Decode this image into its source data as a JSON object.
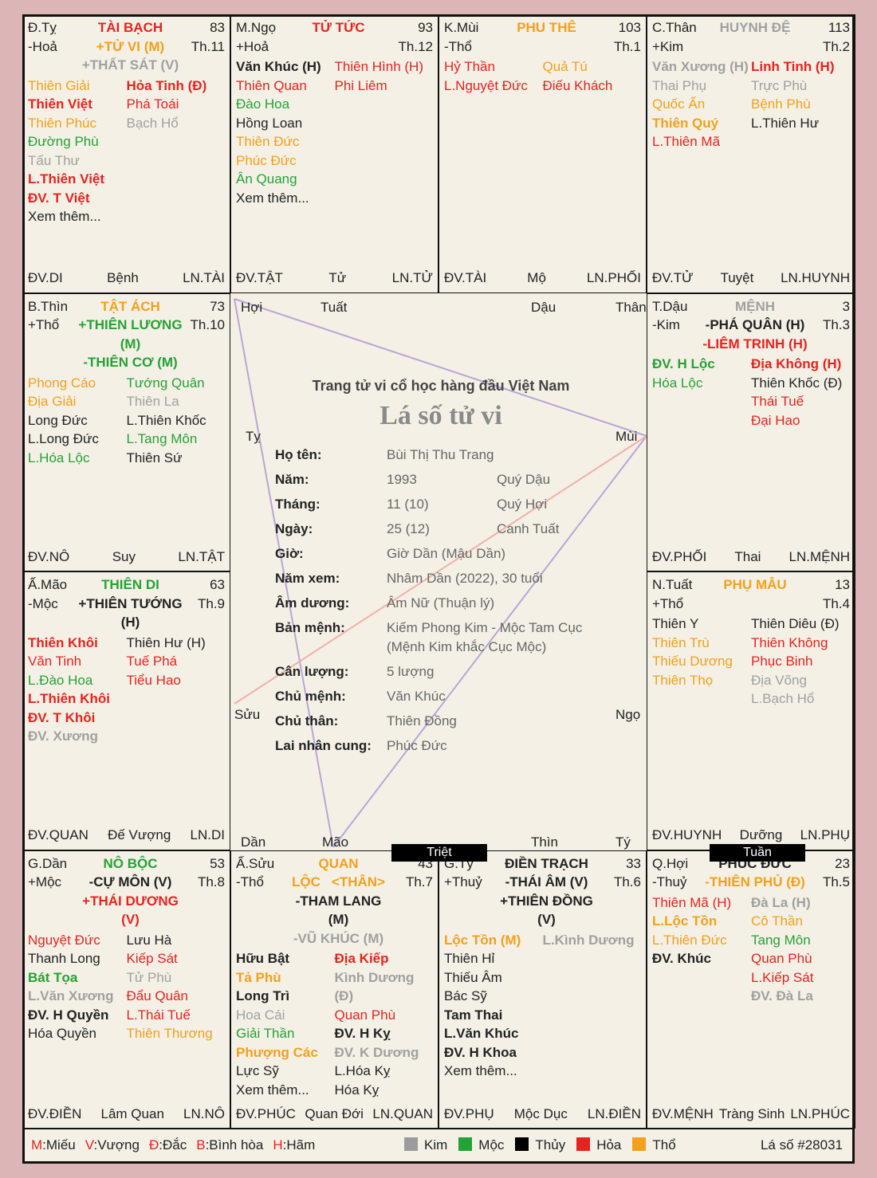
{
  "palaces": [
    {
      "branch": "Đ.Tỵ",
      "element": "-Hoả",
      "name": "TÀI BẠCH",
      "name_color": "#e8231f",
      "age": 83,
      "month": "Th.11",
      "main": [
        {
          "t": "+TỬ VI (M)",
          "c": "#f5a01a",
          "b": true
        },
        {
          "t": "+THẤT SÁT (V)",
          "c": "#a0a0a0",
          "b": true
        }
      ],
      "left": [
        {
          "t": "Thiên Giải",
          "c": "#f5a01a"
        },
        {
          "t": "Thiên Việt",
          "c": "#e8231f",
          "b": true
        },
        {
          "t": "Thiên Phúc",
          "c": "#f5a01a"
        },
        {
          "t": "Đường Phù",
          "c": "#23a334"
        },
        {
          "t": "Tấu Thư",
          "c": "#a0a0a0"
        },
        {
          "t": "L.Thiên Việt",
          "c": "#e8231f",
          "b": true
        },
        {
          "t": "ĐV. T Việt",
          "c": "#e8231f",
          "b": true
        },
        {
          "t": "Xem thêm...",
          "c": "#222222"
        }
      ],
      "right": [
        {
          "t": "Hỏa Tinh (Đ)",
          "c": "#e8231f",
          "b": true
        },
        {
          "t": "Phá Toái",
          "c": "#e8231f"
        },
        {
          "t": "Bạch Hổ",
          "c": "#a0a0a0"
        }
      ],
      "footer": [
        "ĐV.DI",
        "Bệnh",
        "LN.TÀI"
      ]
    },
    {
      "branch": "M.Ngọ",
      "element": "+Hoả",
      "name": "TỬ TỨC",
      "name_color": "#e8231f",
      "age": 93,
      "month": "Th.12",
      "main": [],
      "left": [
        {
          "t": "Văn Khúc (H)",
          "c": "#222222",
          "b": true
        },
        {
          "t": "Thiên Quan",
          "c": "#e8231f"
        },
        {
          "t": "Đào Hoa",
          "c": "#23a334"
        },
        {
          "t": "Hồng Loan",
          "c": "#222222"
        },
        {
          "t": "Thiên Đức",
          "c": "#f5a01a"
        },
        {
          "t": "Phúc Đức",
          "c": "#f5a01a"
        },
        {
          "t": "Ân Quang",
          "c": "#23a334"
        },
        {
          "t": "Xem thêm...",
          "c": "#222222"
        }
      ],
      "right": [
        {
          "t": "Thiên Hình (H)",
          "c": "#e8231f"
        },
        {
          "t": "Phi Liêm",
          "c": "#e8231f"
        }
      ],
      "footer": [
        "ĐV.TẬT",
        "Tử",
        "LN.TỬ"
      ]
    },
    {
      "branch": "K.Mùi",
      "element": "-Thổ",
      "name": "PHU THÊ",
      "name_color": "#f5a01a",
      "age": 103,
      "month": "Th.1",
      "main": [],
      "left": [
        {
          "t": "Hỷ Thần",
          "c": "#e8231f"
        },
        {
          "t": "L.Nguyệt Đức",
          "c": "#e8231f"
        }
      ],
      "right": [
        {
          "t": "Quả Tú",
          "c": "#f5a01a"
        },
        {
          "t": "Điếu Khách",
          "c": "#e8231f"
        }
      ],
      "footer": [
        "ĐV.TÀI",
        "Mộ",
        "LN.PHỐI"
      ]
    },
    {
      "branch": "C.Thân",
      "element": "+Kim",
      "name": "HUYNH ĐỆ",
      "name_color": "#a0a0a0",
      "age": 113,
      "month": "Th.2",
      "main": [],
      "left": [
        {
          "t": "Văn Xương (H)",
          "c": "#a0a0a0",
          "b": true
        },
        {
          "t": "Thai Phụ",
          "c": "#a0a0a0"
        },
        {
          "t": "Quốc Ấn",
          "c": "#f5a01a"
        },
        {
          "t": "Thiên Quý",
          "c": "#f5a01a",
          "b": true
        },
        {
          "t": "L.Thiên Mã",
          "c": "#e8231f"
        }
      ],
      "right": [
        {
          "t": "Linh Tinh (H)",
          "c": "#e8231f",
          "b": true
        },
        {
          "t": "Trực Phù",
          "c": "#a0a0a0"
        },
        {
          "t": "Bệnh Phù",
          "c": "#f5a01a"
        },
        {
          "t": "L.Thiên Hư",
          "c": "#222222"
        }
      ],
      "footer": [
        "ĐV.TỬ",
        "Tuyệt",
        "LN.HUYNH"
      ]
    },
    {
      "branch": "B.Thìn",
      "element": "+Thổ",
      "name": "TẬT ÁCH",
      "name_color": "#f5a01a",
      "age": 73,
      "month": "Th.10",
      "main": [
        {
          "t": "+THIÊN LƯƠNG (M)",
          "c": "#23a334",
          "b": true
        },
        {
          "t": "-THIÊN CƠ (M)",
          "c": "#23a334",
          "b": true
        }
      ],
      "left": [
        {
          "t": "Phong Cáo",
          "c": "#f5a01a"
        },
        {
          "t": "Địa Giải",
          "c": "#f5a01a"
        },
        {
          "t": "Long Đức",
          "c": "#222222"
        },
        {
          "t": "L.Long Đức",
          "c": "#222222"
        },
        {
          "t": "L.Hóa Lộc",
          "c": "#23a334"
        }
      ],
      "right": [
        {
          "t": "Tướng Quân",
          "c": "#23a334"
        },
        {
          "t": "Thiên La",
          "c": "#a0a0a0"
        },
        {
          "t": "L.Thiên Khốc",
          "c": "#222222"
        },
        {
          "t": "L.Tang Môn",
          "c": "#23a334"
        },
        {
          "t": "Thiên Sứ",
          "c": "#222222"
        }
      ],
      "footer": [
        "ĐV.NÔ",
        "Suy",
        "LN.TẬT"
      ]
    },
    {
      "branch": "T.Dậu",
      "element": "-Kim",
      "name": "MỆNH",
      "name_color": "#a0a0a0",
      "age": 3,
      "month": "Th.3",
      "main": [
        {
          "t": "-PHÁ QUÂN (H)",
          "c": "#222222",
          "b": true
        },
        {
          "t": "-LIÊM TRINH (H)",
          "c": "#e8231f",
          "b": true
        }
      ],
      "left": [
        {
          "t": "ĐV. H Lộc",
          "c": "#23a334",
          "b": true
        },
        {
          "t": "Hóa Lộc",
          "c": "#23a334"
        }
      ],
      "right": [
        {
          "t": "Địa Không (H)",
          "c": "#e8231f",
          "b": true
        },
        {
          "t": "Thiên Khốc (Đ)",
          "c": "#222222"
        },
        {
          "t": "Thái Tuế",
          "c": "#e8231f"
        },
        {
          "t": "Đại Hao",
          "c": "#e8231f"
        }
      ],
      "footer": [
        "ĐV.PHỐI",
        "Thai",
        "LN.MỆNH"
      ]
    },
    {
      "branch": "Ấ.Mão",
      "element": "-Mộc",
      "name": "THIÊN DI",
      "name_color": "#23a334",
      "age": 63,
      "month": "Th.9",
      "main": [
        {
          "t": "+THIÊN TƯỚNG (H)",
          "c": "#222222",
          "b": true
        }
      ],
      "left": [
        {
          "t": "Thiên Khôi",
          "c": "#e8231f",
          "b": true
        },
        {
          "t": "Văn Tinh",
          "c": "#e8231f"
        },
        {
          "t": "L.Đào Hoa",
          "c": "#23a334"
        },
        {
          "t": "L.Thiên Khôi",
          "c": "#e8231f",
          "b": true
        },
        {
          "t": "ĐV. T Khôi",
          "c": "#e8231f",
          "b": true
        },
        {
          "t": "ĐV. Xương",
          "c": "#a0a0a0",
          "b": true
        }
      ],
      "right": [
        {
          "t": "Thiên Hư (H)",
          "c": "#222222"
        },
        {
          "t": "Tuế Phá",
          "c": "#e8231f"
        },
        {
          "t": "Tiểu Hao",
          "c": "#e8231f"
        }
      ],
      "footer": [
        "ĐV.QUAN",
        "Đế Vượng",
        "LN.DI"
      ]
    },
    {
      "branch": "N.Tuất",
      "element": "+Thổ",
      "name": "PHỤ MẪU",
      "name_color": "#f5a01a",
      "age": 13,
      "month": "Th.4",
      "main": [],
      "left": [
        {
          "t": "Thiên Y",
          "c": "#222222"
        },
        {
          "t": "Thiên Trù",
          "c": "#f5a01a"
        },
        {
          "t": "Thiếu Dương",
          "c": "#f5a01a"
        },
        {
          "t": "Thiên Thọ",
          "c": "#f5a01a"
        }
      ],
      "right": [
        {
          "t": "Thiên Diêu (Đ)",
          "c": "#222222"
        },
        {
          "t": "Thiên Không",
          "c": "#e8231f"
        },
        {
          "t": "Phục Binh",
          "c": "#e8231f"
        },
        {
          "t": "Địa Võng",
          "c": "#a0a0a0"
        },
        {
          "t": "L.Bạch Hổ",
          "c": "#a0a0a0"
        }
      ],
      "footer": [
        "ĐV.HUYNH",
        "Dưỡng",
        "LN.PHỤ"
      ]
    },
    {
      "branch": "G.Dần",
      "element": "+Mộc",
      "name": "NÔ BỘC",
      "name_color": "#23a334",
      "age": 53,
      "month": "Th.8",
      "main": [
        {
          "t": "-CỰ MÔN (V)",
          "c": "#222222",
          "b": true
        },
        {
          "t": "+THÁI DƯƠNG (V)",
          "c": "#e8231f",
          "b": true
        }
      ],
      "left": [
        {
          "t": "Nguyệt Đức",
          "c": "#e8231f"
        },
        {
          "t": "Thanh Long",
          "c": "#222222"
        },
        {
          "t": "Bát Tọa",
          "c": "#23a334",
          "b": true
        },
        {
          "t": "L.Văn Xương",
          "c": "#a0a0a0",
          "b": true
        },
        {
          "t": "ĐV. H Quyền",
          "c": "#222222",
          "b": true
        },
        {
          "t": "Hóa Quyền",
          "c": "#222222"
        }
      ],
      "right": [
        {
          "t": "Lưu Hà",
          "c": "#222222"
        },
        {
          "t": "Kiếp Sát",
          "c": "#e8231f"
        },
        {
          "t": "Tử Phù",
          "c": "#a0a0a0"
        },
        {
          "t": "Đẩu Quân",
          "c": "#e8231f"
        },
        {
          "t": "L.Thái Tuế",
          "c": "#e8231f"
        },
        {
          "t": "Thiên Thương",
          "c": "#f5a01a"
        }
      ],
      "footer": [
        "ĐV.ĐIỀN",
        "Lâm Quan",
        "LN.NÔ"
      ]
    },
    {
      "branch": "Ấ.Sửu",
      "element": "-Thổ",
      "name": "QUAN LỘC",
      "name_color": "#f5a01a",
      "tag": "<THÂN>",
      "age": 43,
      "month": "Th.7",
      "main": [
        {
          "t": "-THAM LANG (M)",
          "c": "#222222",
          "b": true
        },
        {
          "t": "-VŨ KHÚC (M)",
          "c": "#a0a0a0",
          "b": true
        }
      ],
      "left": [
        {
          "t": "Hữu Bật",
          "c": "#222222",
          "b": true
        },
        {
          "t": "Tả Phù",
          "c": "#f5a01a",
          "b": true
        },
        {
          "t": "Long Trì",
          "c": "#222222",
          "b": true
        },
        {
          "t": "Hoa Cái",
          "c": "#a0a0a0"
        },
        {
          "t": "Giải Thần",
          "c": "#23a334"
        },
        {
          "t": "Phượng Các",
          "c": "#f5a01a",
          "b": true
        },
        {
          "t": "Lực Sỹ",
          "c": "#222222"
        },
        {
          "t": "Xem thêm...",
          "c": "#222222"
        }
      ],
      "right": [
        {
          "t": "Địa Kiếp",
          "c": "#e8231f",
          "b": true
        },
        {
          "t": "Kình Dương (Đ)",
          "c": "#a0a0a0",
          "b": true
        },
        {
          "t": "Quan Phù",
          "c": "#e8231f"
        },
        {
          "t": "ĐV. H Kỵ",
          "c": "#222222",
          "b": true
        },
        {
          "t": "ĐV. K Dương",
          "c": "#a0a0a0",
          "b": true
        },
        {
          "t": "L.Hóa Kỵ",
          "c": "#222222"
        },
        {
          "t": "Hóa Kỵ",
          "c": "#222222"
        }
      ],
      "footer": [
        "ĐV.PHÚC",
        "Quan Đới",
        "LN.QUAN"
      ]
    },
    {
      "branch": "G.Tý",
      "element": "+Thuỷ",
      "name": "ĐIỀN TRẠCH",
      "name_color": "#222222",
      "age": 33,
      "month": "Th.6",
      "main": [
        {
          "t": "-THÁI ÂM (V)",
          "c": "#222222",
          "b": true
        },
        {
          "t": "+THIÊN ĐỒNG (V)",
          "c": "#222222",
          "b": true
        }
      ],
      "left": [
        {
          "t": "Lộc Tồn (M)",
          "c": "#f5a01a",
          "b": true
        },
        {
          "t": "Thiên Hỉ",
          "c": "#222222"
        },
        {
          "t": "Thiếu Âm",
          "c": "#222222"
        },
        {
          "t": "Bác Sỹ",
          "c": "#222222"
        },
        {
          "t": "Tam Thai",
          "c": "#222222",
          "b": true
        },
        {
          "t": "L.Văn Khúc",
          "c": "#222222",
          "b": true
        },
        {
          "t": "ĐV. H Khoa",
          "c": "#222222",
          "b": true
        },
        {
          "t": "Xem thêm...",
          "c": "#222222"
        }
      ],
      "right": [
        {
          "t": "L.Kình Dương",
          "c": "#a0a0a0",
          "b": true
        }
      ],
      "footer": [
        "ĐV.PHỤ",
        "Mộc Dục",
        "LN.ĐIỀN"
      ]
    },
    {
      "branch": "Q.Hợi",
      "element": "-Thuỷ",
      "name": "PHÚC ĐỨC",
      "name_color": "#222222",
      "age": 23,
      "month": "Th.5",
      "main": [
        {
          "t": "-THIÊN PHỦ (Đ)",
          "c": "#f5a01a",
          "b": true
        }
      ],
      "left": [
        {
          "t": "Thiên Mã (H)",
          "c": "#e8231f"
        },
        {
          "t": "L.Lộc Tồn",
          "c": "#f5a01a",
          "b": true
        },
        {
          "t": "L.Thiên Đức",
          "c": "#f5a01a"
        },
        {
          "t": "ĐV. Khúc",
          "c": "#222222",
          "b": true
        }
      ],
      "right": [
        {
          "t": "Đà La (H)",
          "c": "#a0a0a0",
          "b": true
        },
        {
          "t": "Cô Thần",
          "c": "#f5a01a"
        },
        {
          "t": "Tang Môn",
          "c": "#23a334"
        },
        {
          "t": "Quan Phù",
          "c": "#e8231f"
        },
        {
          "t": "L.Kiếp Sát",
          "c": "#e8231f"
        },
        {
          "t": "ĐV. Đà La",
          "c": "#a0a0a0",
          "b": true
        }
      ],
      "footer": [
        "ĐV.MỆNH",
        "Tràng Sinh",
        "LN.PHÚC"
      ]
    }
  ],
  "cut_marks": [
    "Triệt",
    "Tuần"
  ],
  "center": {
    "branches": [
      "Hợi",
      "Tuất",
      "Dậu",
      "Thân",
      "Tỵ",
      "Mùi",
      "Sửu",
      "Ngọ",
      "Dần",
      "Mão",
      "Thìn",
      "Tý"
    ],
    "slogan": "Trang tử vi cổ học hàng đầu Việt Nam",
    "title": "Lá số tử vi",
    "info": [
      {
        "label": "Họ tên:",
        "values": [
          "Bùi Thị Thu Trang"
        ]
      },
      {
        "label": "Năm:",
        "values": [
          "1993",
          "Quý Dậu"
        ]
      },
      {
        "label": "Tháng:",
        "values": [
          "11 (10)",
          "Quý Hợi"
        ]
      },
      {
        "label": "Ngày:",
        "values": [
          "25 (12)",
          "Canh Tuất"
        ]
      },
      {
        "label": "Giờ:",
        "values": [
          "Giờ Dần (Mậu Dần)"
        ]
      },
      {
        "label": "Năm xem:",
        "values": [
          "Nhâm Dần (2022), 30 tuổi"
        ]
      },
      {
        "label": "Âm dương:",
        "values": [
          "Âm Nữ (Thuận lý)"
        ]
      },
      {
        "label": "Bản mệnh:",
        "values": [
          "Kiếm Phong Kim - Mộc Tam Cục",
          "(Mệnh Kim khắc Cục Mộc)"
        ]
      },
      {
        "label": "Cân lượng:",
        "values": [
          "5 lượng"
        ]
      },
      {
        "label": "Chủ mệnh:",
        "values": [
          "Văn Khúc"
        ]
      },
      {
        "label": "Chủ thân:",
        "values": [
          "Thiên Đồng"
        ]
      },
      {
        "label": "Lai nhân cung:",
        "values": [
          "Phúc Đức"
        ]
      }
    ]
  },
  "legend": {
    "marks": [
      {
        "key": "M",
        "text": ":Miếu"
      },
      {
        "key": "V",
        "text": ":Vượng"
      },
      {
        "key": "Đ",
        "text": ":Đắc"
      },
      {
        "key": "B",
        "text": ":Bình hòa"
      },
      {
        "key": "H",
        "text": ":Hãm"
      }
    ],
    "elements": [
      {
        "name": "Kim",
        "color": "#9b9b9b"
      },
      {
        "name": "Mộc",
        "color": "#23a334"
      },
      {
        "name": "Thủy",
        "color": "#000000"
      },
      {
        "name": "Hỏa",
        "color": "#e8231f"
      },
      {
        "name": "Thổ",
        "color": "#f5a01a"
      }
    ],
    "chart_id": "Lá số #28031"
  }
}
